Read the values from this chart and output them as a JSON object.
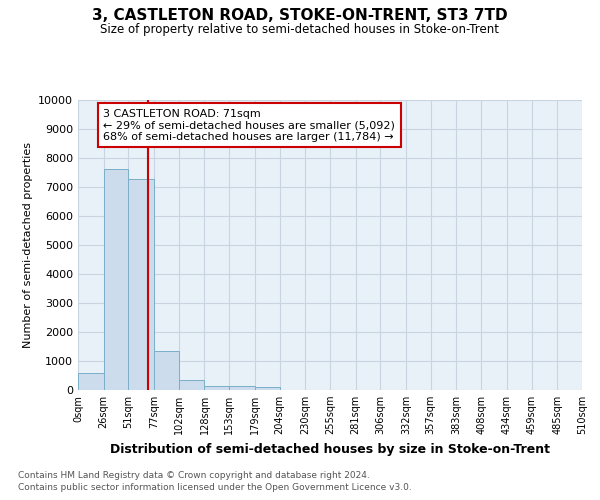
{
  "title": "3, CASTLETON ROAD, STOKE-ON-TRENT, ST3 7TD",
  "subtitle": "Size of property relative to semi-detached houses in Stoke-on-Trent",
  "xlabel": "Distribution of semi-detached houses by size in Stoke-on-Trent",
  "ylabel": "Number of semi-detached properties",
  "annotation_title": "3 CASTLETON ROAD: 71sqm",
  "annotation_line1": "← 29% of semi-detached houses are smaller (5,092)",
  "annotation_line2": "68% of semi-detached houses are larger (11,784) →",
  "property_size": 71,
  "bar_edges": [
    0,
    26,
    51,
    77,
    102,
    128,
    153,
    179,
    204,
    230,
    255,
    281,
    306,
    332,
    357,
    383,
    408,
    434,
    459,
    485,
    510
  ],
  "bar_heights": [
    580,
    7620,
    7280,
    1340,
    340,
    155,
    135,
    90,
    0,
    0,
    0,
    0,
    0,
    0,
    0,
    0,
    0,
    0,
    0,
    0
  ],
  "bar_color": "#ccdcec",
  "bar_edge_color": "#7aafc8",
  "vline_color": "#cc0000",
  "annotation_box_color": "#ffffff",
  "annotation_box_edge": "#cc0000",
  "grid_color": "#c8d4e0",
  "bg_color": "#e8f0f8",
  "tick_labels": [
    "0sqm",
    "26sqm",
    "51sqm",
    "77sqm",
    "102sqm",
    "128sqm",
    "153sqm",
    "179sqm",
    "204sqm",
    "230sqm",
    "255sqm",
    "281sqm",
    "306sqm",
    "332sqm",
    "357sqm",
    "383sqm",
    "408sqm",
    "434sqm",
    "459sqm",
    "485sqm",
    "510sqm"
  ],
  "ylim": [
    0,
    10000
  ],
  "yticks": [
    0,
    1000,
    2000,
    3000,
    4000,
    5000,
    6000,
    7000,
    8000,
    9000,
    10000
  ],
  "footer1": "Contains HM Land Registry data © Crown copyright and database right 2024.",
  "footer2": "Contains public sector information licensed under the Open Government Licence v3.0."
}
